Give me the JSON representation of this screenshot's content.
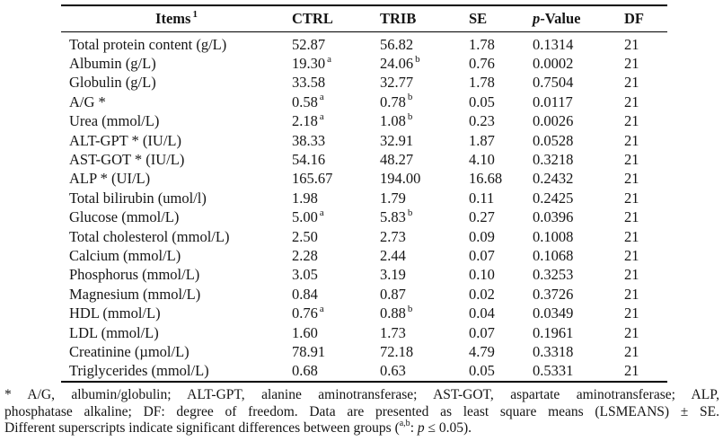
{
  "table": {
    "columns": [
      {
        "key": "items",
        "text": "Items",
        "sup": "1"
      },
      {
        "key": "ctrl",
        "text": "CTRL"
      },
      {
        "key": "trib",
        "text": "TRIB"
      },
      {
        "key": "se",
        "text": "SE"
      },
      {
        "key": "p_value",
        "italic": "p",
        "text": "-Value"
      },
      {
        "key": "df",
        "text": "DF"
      }
    ],
    "rows": [
      {
        "item": "Total protein content (g/L)",
        "ctrl": "52.87",
        "ctrl_sup": "",
        "trib": "56.82",
        "trib_sup": "",
        "se": "1.78",
        "p_value": "0.1314",
        "df": "21"
      },
      {
        "item": "Albumin (g/L)",
        "ctrl": "19.30",
        "ctrl_sup": "a",
        "trib": "24.06",
        "trib_sup": "b",
        "se": "0.76",
        "p_value": "0.0002",
        "df": "21"
      },
      {
        "item": "Globulin (g/L)",
        "ctrl": "33.58",
        "ctrl_sup": "",
        "trib": "32.77",
        "trib_sup": "",
        "se": "1.78",
        "p_value": "0.7504",
        "df": "21"
      },
      {
        "item": "A/G *",
        "ctrl": "0.58",
        "ctrl_sup": "a",
        "trib": "0.78",
        "trib_sup": "b",
        "se": "0.05",
        "p_value": "0.0117",
        "df": "21"
      },
      {
        "item": "Urea (mmol/L)",
        "ctrl": "2.18",
        "ctrl_sup": "a",
        "trib": "1.08",
        "trib_sup": "b",
        "se": "0.23",
        "p_value": "0.0026",
        "df": "21"
      },
      {
        "item": "ALT-GPT * (IU/L)",
        "ctrl": "38.33",
        "ctrl_sup": "",
        "trib": "32.91",
        "trib_sup": "",
        "se": "1.87",
        "p_value": "0.0528",
        "df": "21"
      },
      {
        "item": "AST-GOT * (IU/L)",
        "ctrl": "54.16",
        "ctrl_sup": "",
        "trib": "48.27",
        "trib_sup": "",
        "se": "4.10",
        "p_value": "0.3218",
        "df": "21"
      },
      {
        "item": "ALP * (UI/L)",
        "ctrl": "165.67",
        "ctrl_sup": "",
        "trib": "194.00",
        "trib_sup": "",
        "se": "16.68",
        "p_value": "0.2432",
        "df": "21"
      },
      {
        "item": "Total bilirubin (umol/l)",
        "ctrl": "1.98",
        "ctrl_sup": "",
        "trib": "1.79",
        "trib_sup": "",
        "se": "0.11",
        "p_value": "0.2425",
        "df": "21"
      },
      {
        "item": "Glucose (mmol/L)",
        "ctrl": "5.00",
        "ctrl_sup": "a",
        "trib": "5.83",
        "trib_sup": "b",
        "se": "0.27",
        "p_value": "0.0396",
        "df": "21"
      },
      {
        "item": "Total cholesterol (mmol/L)",
        "ctrl": "2.50",
        "ctrl_sup": "",
        "trib": "2.73",
        "trib_sup": "",
        "se": "0.09",
        "p_value": "0.1008",
        "df": "21"
      },
      {
        "item": "Calcium (mmol/L)",
        "ctrl": "2.28",
        "ctrl_sup": "",
        "trib": "2.44",
        "trib_sup": "",
        "se": "0.07",
        "p_value": "0.1068",
        "df": "21"
      },
      {
        "item": "Phosphorus (mmol/L)",
        "ctrl": "3.05",
        "ctrl_sup": "",
        "trib": "3.19",
        "trib_sup": "",
        "se": "0.10",
        "p_value": "0.3253",
        "df": "21"
      },
      {
        "item": "Magnesium (mmol/L)",
        "ctrl": "0.84",
        "ctrl_sup": "",
        "trib": "0.87",
        "trib_sup": "",
        "se": "0.02",
        "p_value": "0.3726",
        "df": "21"
      },
      {
        "item": "HDL (mmol/L)",
        "ctrl": "0.76",
        "ctrl_sup": "a",
        "trib": "0.88",
        "trib_sup": "b",
        "se": "0.04",
        "p_value": "0.0349",
        "df": "21"
      },
      {
        "item": "LDL (mmol/L)",
        "ctrl": "1.60",
        "ctrl_sup": "",
        "trib": "1.73",
        "trib_sup": "",
        "se": "0.07",
        "p_value": "0.1961",
        "df": "21"
      },
      {
        "item": "Creatinine (µmol/L)",
        "ctrl": "78.91",
        "ctrl_sup": "",
        "trib": "72.18",
        "trib_sup": "",
        "se": "4.79",
        "p_value": "0.3318",
        "df": "21"
      },
      {
        "item": "Triglycerides (mmol/L)",
        "ctrl": "0.68",
        "ctrl_sup": "",
        "trib": "0.63",
        "trib_sup": "",
        "se": "0.05",
        "p_value": "0.5331",
        "df": "21"
      }
    ]
  },
  "footnote": {
    "line1": "* A/G, albumin/globulin; ALT-GPT, alanine aminotransferase; AST-GOT, aspartate aminotransferase; ALP,",
    "line2": "phosphatase alkaline; DF: degree of freedom. Data are presented as least square means (LSMEANS) ± SE.",
    "line3_prefix": "Different superscripts indicate significant differences between groups (",
    "line3_sup": "a,b",
    "line3_mid": ": ",
    "line3_italic": "p",
    "line3_suffix": " ≤ 0.05)."
  },
  "colors": {
    "text": "#161616",
    "rule": "#000000",
    "background": "#ffffff"
  }
}
